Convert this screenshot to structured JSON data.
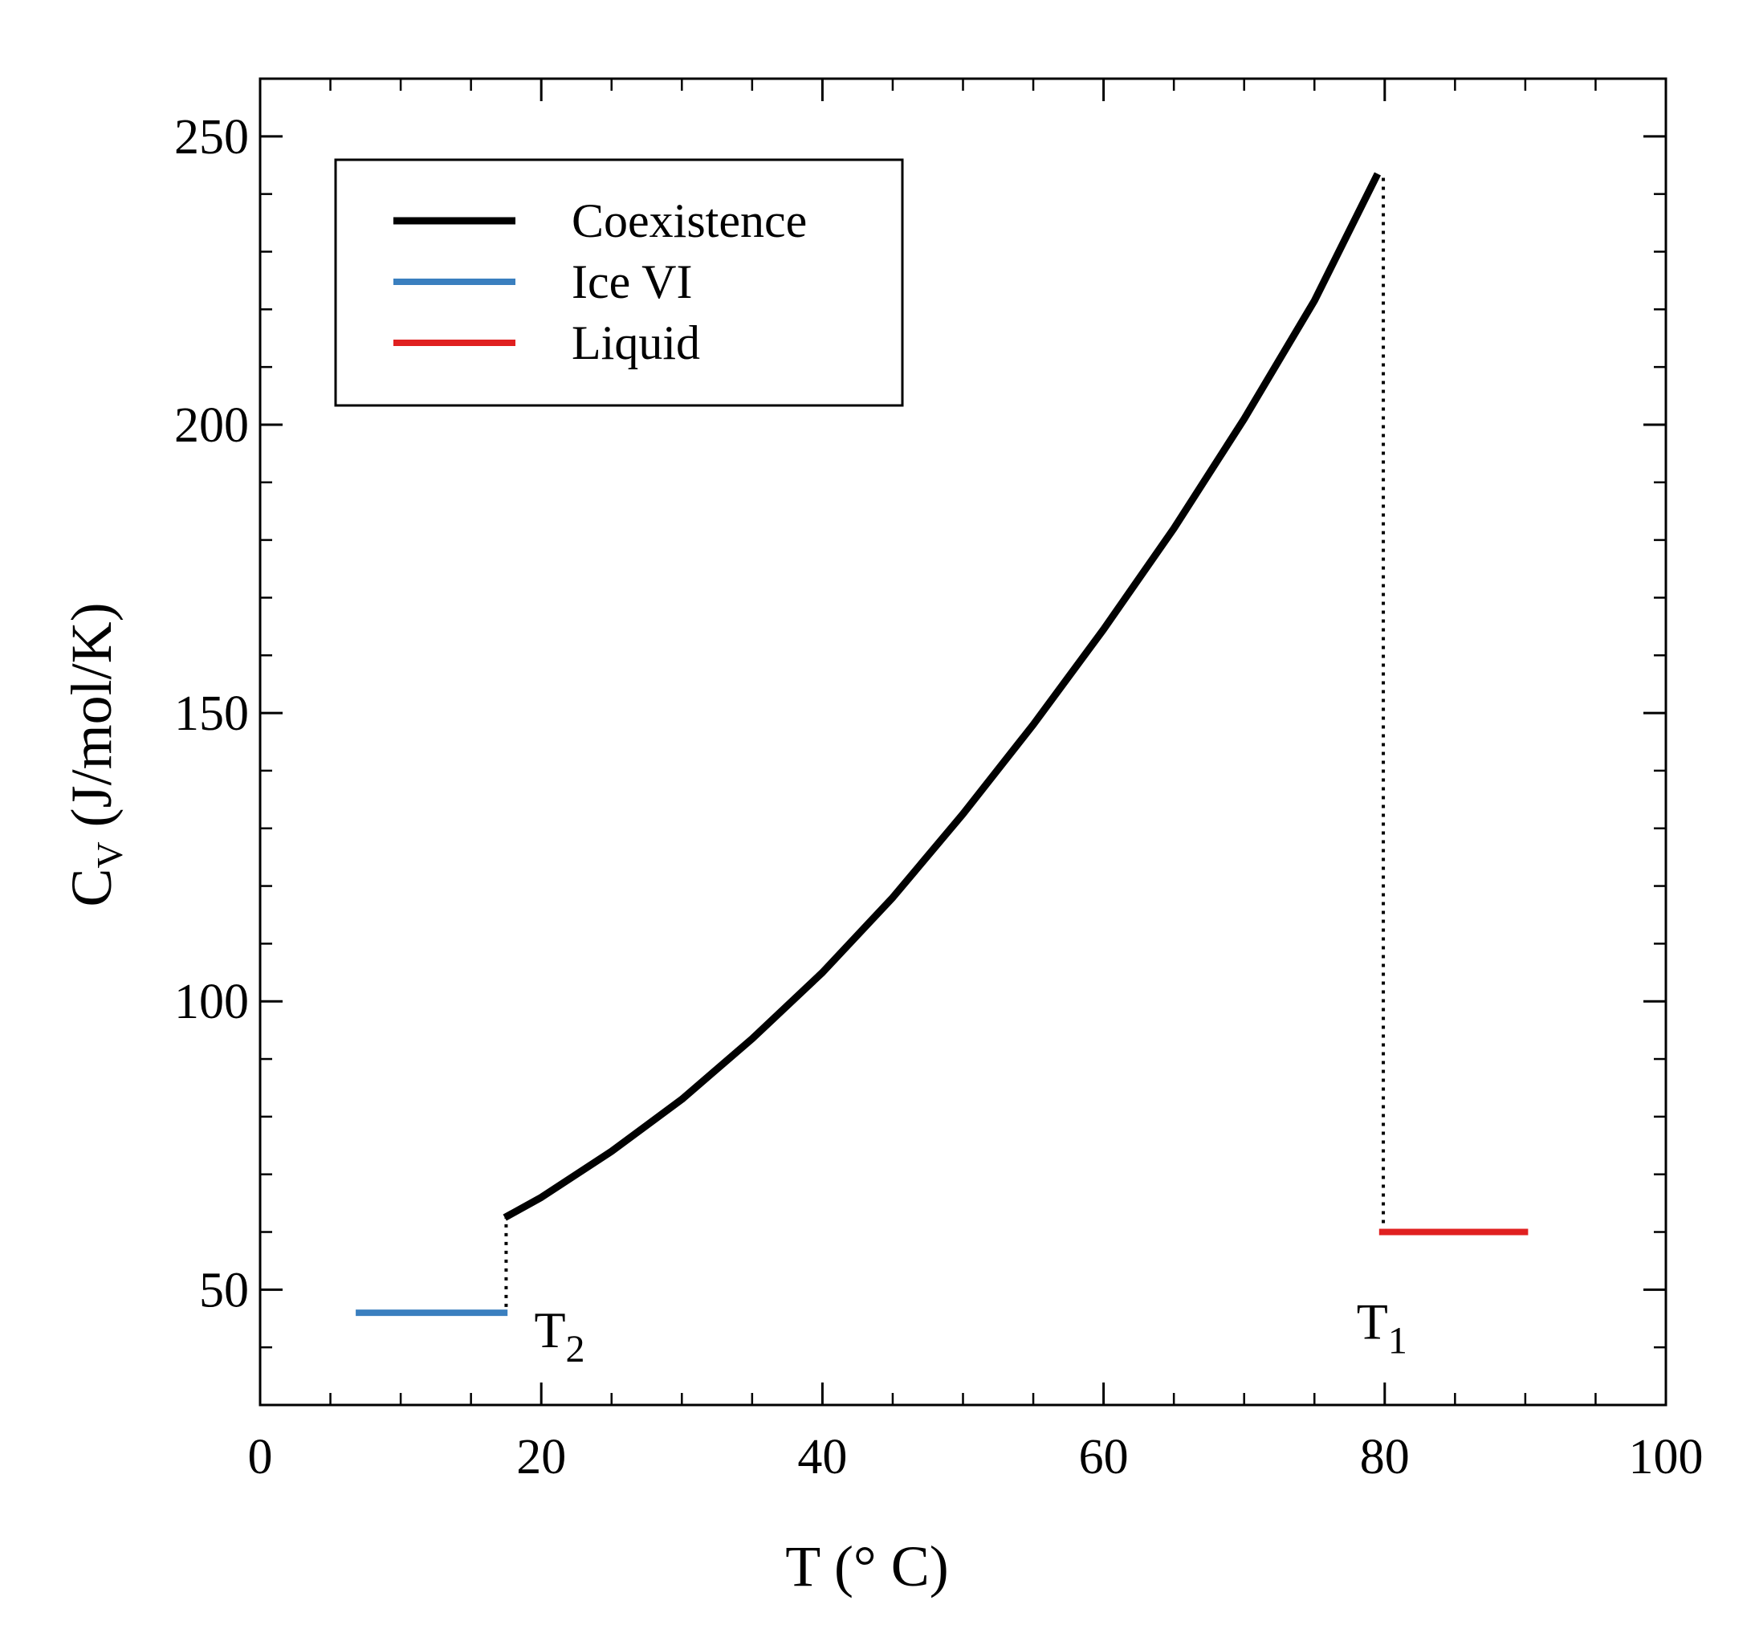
{
  "chart_data": {
    "type": "line",
    "title": "",
    "xlabel": "T (° C)",
    "ylabel": {
      "main": "C",
      "sub": "V",
      "units": " (J/mol/K)"
    },
    "xlim": [
      0,
      100
    ],
    "ylim": [
      30,
      260
    ],
    "xticks": [
      0,
      20,
      40,
      60,
      80,
      100
    ],
    "xtick_labels": [
      "0",
      "20",
      "40",
      "60",
      "80",
      "100"
    ],
    "x_minor_step": 5,
    "yticks": [
      50,
      100,
      150,
      200,
      250
    ],
    "ytick_labels": [
      "50",
      "100",
      "150",
      "200",
      "250"
    ],
    "y_minor_step": 10,
    "grid": false,
    "legend_position": "top-left",
    "series": [
      {
        "name": "Coexistence",
        "color": "#000000",
        "x": [
          17.4,
          20,
          25,
          30,
          35,
          40,
          45,
          50,
          55,
          60,
          65,
          70,
          75,
          79.5
        ],
        "y": [
          62.5,
          66,
          74,
          83,
          93.5,
          105,
          118,
          132.5,
          148,
          164.5,
          182,
          201,
          221.5,
          243.5
        ]
      },
      {
        "name": "Ice VI",
        "color": "#3a7fbf",
        "x": [
          6.8,
          17.6
        ],
        "y": [
          46,
          46
        ]
      },
      {
        "name": "Liquid",
        "color": "#e02020",
        "x": [
          79.6,
          90.2
        ],
        "y": [
          60,
          60
        ]
      }
    ],
    "guides": [
      {
        "style": "dotted",
        "x": [
          17.5,
          17.5
        ],
        "y": [
          47,
          62.5
        ]
      },
      {
        "style": "dotted",
        "x": [
          79.9,
          79.9
        ],
        "y": [
          60,
          243
        ]
      }
    ],
    "annotations": [
      {
        "main": "T",
        "sub": "2",
        "x": 19.5,
        "y": 40
      },
      {
        "main": "T",
        "sub": "1",
        "x": 78.0,
        "y": 41.5
      }
    ]
  }
}
